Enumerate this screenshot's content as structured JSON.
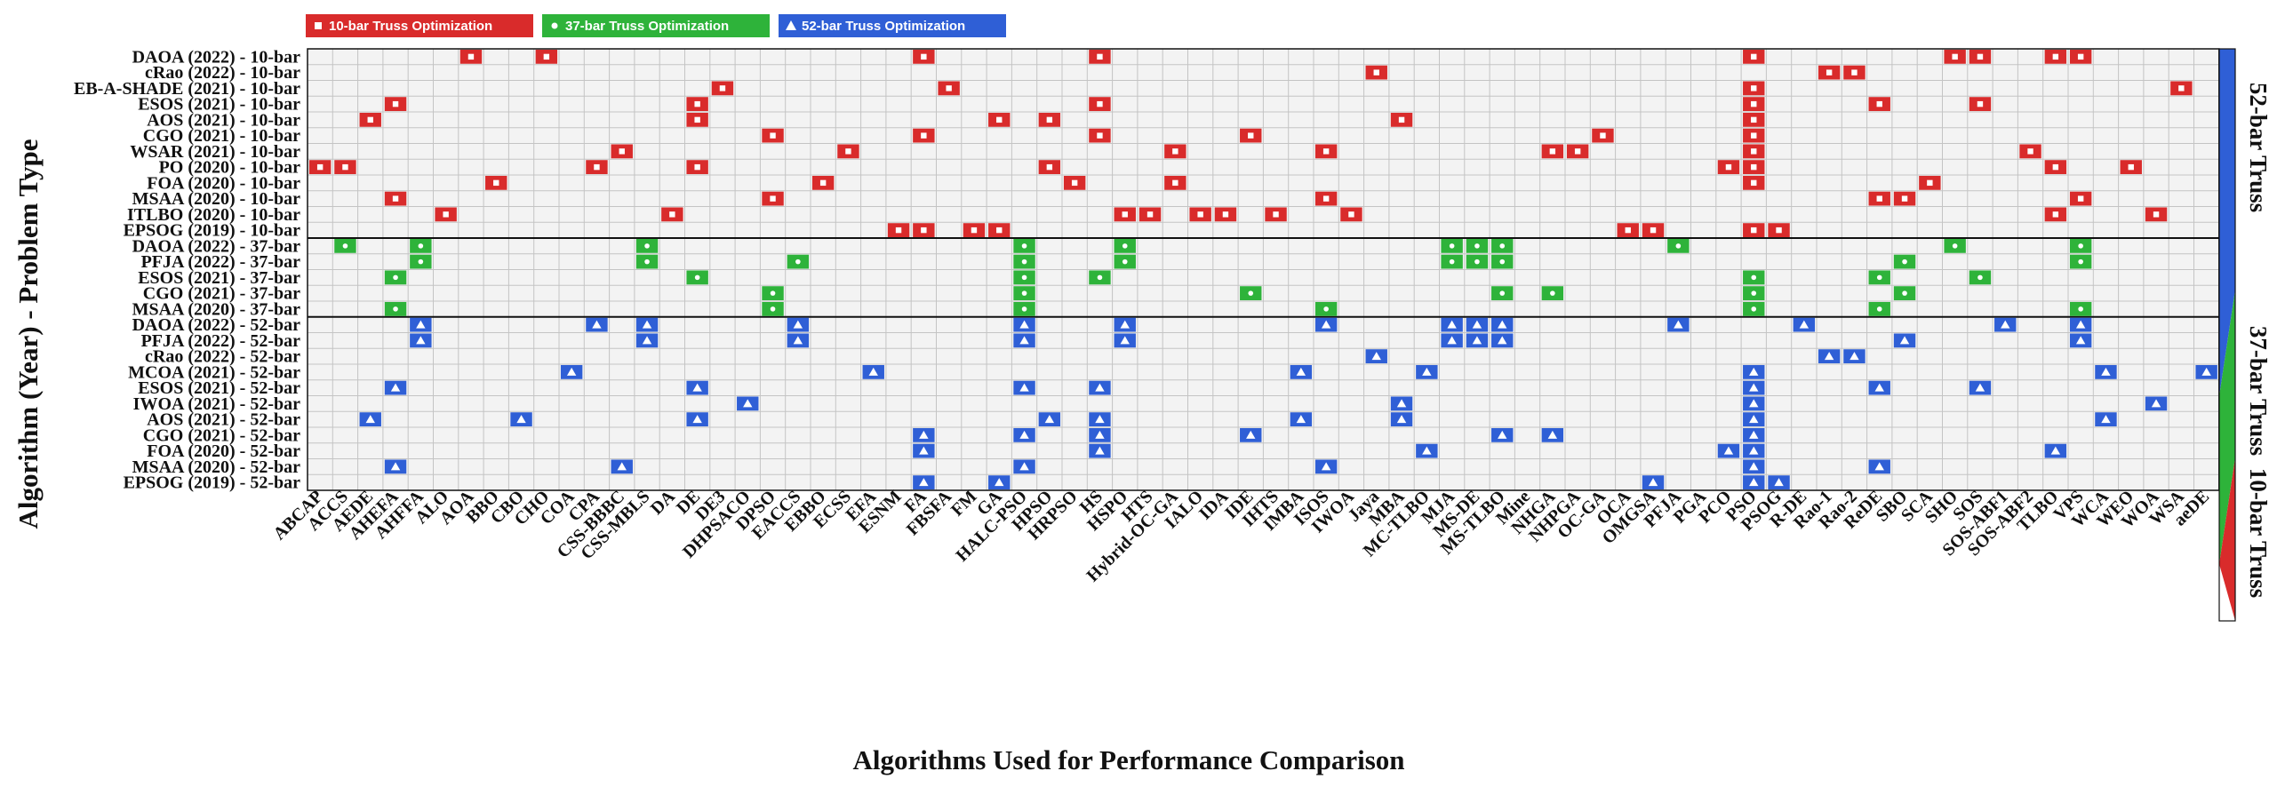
{
  "chart_data": {
    "type": "heatmap",
    "xlabel": "Algorithms Used for Performance Comparison",
    "ylabel": "Algorithm (Year) - Problem Type",
    "grid": true,
    "legend_position": "top-left",
    "colors": {
      "10bar": "#d92b2b",
      "37bar": "#2eb33a",
      "52bar": "#2f5fd6",
      "cell_bg": "#f3f3f3",
      "grid": "#c4c4c4"
    },
    "legend": [
      {
        "key": "10bar",
        "label": "10-bar Truss Optimization",
        "marker": "square"
      },
      {
        "key": "37bar",
        "label": "37-bar Truss Optimization",
        "marker": "circle"
      },
      {
        "key": "52bar",
        "label": "52-bar Truss Optimization",
        "marker": "triangle"
      }
    ],
    "colorbar_labels": [
      "52-bar Truss",
      "37-bar Truss",
      "10-bar Truss"
    ],
    "columns": [
      "ABCAP",
      "ACCS",
      "AEDE",
      "AHEFA",
      "AHFFA",
      "ALO",
      "AOA",
      "BBO",
      "CBO",
      "CHO",
      "COA",
      "CPA",
      "CSS-BBBC",
      "CSS-MBLS",
      "DA",
      "DE",
      "DE3",
      "DHPSACO",
      "DPSO",
      "EACCS",
      "EBBO",
      "ECSS",
      "EFA",
      "ESNM",
      "FA",
      "FBSFA",
      "FM",
      "GA",
      "HALC-PSO",
      "HPSO",
      "HRPSO",
      "HS",
      "HSPO",
      "HTS",
      "Hybrid-OC-GA",
      "IALO",
      "IDA",
      "IDE",
      "IHTS",
      "IMBA",
      "ISOS",
      "IWOA",
      "Jaya",
      "MBA",
      "MC-TLBO",
      "MJA",
      "MS-DE",
      "MS-TLBO",
      "Mine",
      "NHGA",
      "NHPGA",
      "OC-GA",
      "OCA",
      "OMGSA",
      "PFJA",
      "PGA",
      "PCO",
      "PSO",
      "PSOG",
      "R-DE",
      "Rao-1",
      "Rao-2",
      "ReDE",
      "SBO",
      "SCA",
      "SHO",
      "SOS",
      "SOS-ABF1",
      "SOS-ABF2",
      "TLBO",
      "VPS",
      "WCA",
      "WEO",
      "WOA",
      "WSA",
      "aeDE"
    ],
    "rows": [
      {
        "label": "DAOA (2022) - 10-bar",
        "type": "10bar",
        "x": [
          "AOA",
          "CHO",
          "FA",
          "HS",
          "PSO",
          "SHO",
          "SOS",
          "TLBO",
          "VPS"
        ]
      },
      {
        "label": "cRao (2022) - 10-bar",
        "type": "10bar",
        "x": [
          "Jaya",
          "Rao-1",
          "Rao-2"
        ]
      },
      {
        "label": "EB-A-SHADE (2021) - 10-bar",
        "type": "10bar",
        "x": [
          "DE3",
          "FBSFA",
          "PSO",
          "WSA"
        ]
      },
      {
        "label": "ESOS (2021) - 10-bar",
        "type": "10bar",
        "x": [
          "AHEFA",
          "DE",
          "HS",
          "PSO",
          "ReDE",
          "SOS"
        ]
      },
      {
        "label": "AOS (2021) - 10-bar",
        "type": "10bar",
        "x": [
          "AEDE",
          "DE",
          "GA",
          "HPSO",
          "MBA",
          "PSO"
        ]
      },
      {
        "label": "CGO (2021) - 10-bar",
        "type": "10bar",
        "x": [
          "DPSO",
          "FA",
          "HS",
          "IDE",
          "OC-GA",
          "PSO"
        ]
      },
      {
        "label": "WSAR (2021) - 10-bar",
        "type": "10bar",
        "x": [
          "CSS-BBBC",
          "ECSS",
          "Hybrid-OC-GA",
          "ISOS",
          "NHGA",
          "NHPGA",
          "PSO",
          "SOS-ABF2"
        ]
      },
      {
        "label": "PO (2020) - 10-bar",
        "type": "10bar",
        "x": [
          "ABCAP",
          "ACCS",
          "CPA",
          "DE",
          "HPSO",
          "PCO",
          "PSO",
          "TLBO",
          "WEO"
        ]
      },
      {
        "label": "FOA (2020) - 10-bar",
        "type": "10bar",
        "x": [
          "BBO",
          "EBBO",
          "HRPSO",
          "Hybrid-OC-GA",
          "PSO",
          "SCA"
        ]
      },
      {
        "label": "MSAA (2020) - 10-bar",
        "type": "10bar",
        "x": [
          "AHEFA",
          "DPSO",
          "ISOS",
          "ReDE",
          "SBO",
          "VPS"
        ]
      },
      {
        "label": "ITLBO (2020) - 10-bar",
        "type": "10bar",
        "x": [
          "ALO",
          "DA",
          "HSPO",
          "HTS",
          "IALO",
          "IDA",
          "IHTS",
          "IWOA",
          "TLBO",
          "WOA"
        ]
      },
      {
        "label": "EPSOG (2019) - 10-bar",
        "type": "10bar",
        "x": [
          "ESNM",
          "FA",
          "FM",
          "GA",
          "OCA",
          "OMGSA",
          "PSO",
          "PSOG"
        ]
      },
      {
        "label": "DAOA (2022) - 37-bar",
        "type": "37bar",
        "x": [
          "ACCS",
          "AHFFA",
          "CSS-MBLS",
          "HALC-PSO",
          "HSPO",
          "MJA",
          "MS-DE",
          "MS-TLBO",
          "PFJA",
          "SHO",
          "VPS"
        ]
      },
      {
        "label": "PFJA (2022) - 37-bar",
        "type": "37bar",
        "x": [
          "AHFFA",
          "CSS-MBLS",
          "EACCS",
          "HALC-PSO",
          "HSPO",
          "MJA",
          "MS-DE",
          "MS-TLBO",
          "SBO",
          "VPS"
        ]
      },
      {
        "label": "ESOS (2021) - 37-bar",
        "type": "37bar",
        "x": [
          "AHEFA",
          "DE",
          "HALC-PSO",
          "HS",
          "PSO",
          "ReDE",
          "SOS"
        ]
      },
      {
        "label": "CGO (2021) - 37-bar",
        "type": "37bar",
        "x": [
          "DPSO",
          "HALC-PSO",
          "IDE",
          "MS-TLBO",
          "NHGA",
          "PSO",
          "SBO"
        ]
      },
      {
        "label": "MSAA (2020) - 37-bar",
        "type": "37bar",
        "x": [
          "AHEFA",
          "DPSO",
          "HALC-PSO",
          "ISOS",
          "PSO",
          "ReDE",
          "VPS"
        ]
      },
      {
        "label": "DAOA (2022) - 52-bar",
        "type": "52bar",
        "x": [
          "AHFFA",
          "CPA",
          "CSS-MBLS",
          "EACCS",
          "HALC-PSO",
          "HSPO",
          "ISOS",
          "MJA",
          "MS-DE",
          "MS-TLBO",
          "PFJA",
          "R-DE",
          "SOS-ABF1",
          "VPS"
        ]
      },
      {
        "label": "PFJA (2022) - 52-bar",
        "type": "52bar",
        "x": [
          "AHFFA",
          "CSS-MBLS",
          "EACCS",
          "HALC-PSO",
          "HSPO",
          "MJA",
          "MS-DE",
          "MS-TLBO",
          "SBO",
          "VPS"
        ]
      },
      {
        "label": "cRao (2022) - 52-bar",
        "type": "52bar",
        "x": [
          "Jaya",
          "Rao-1",
          "Rao-2"
        ]
      },
      {
        "label": "MCOA (2021) - 52-bar",
        "type": "52bar",
        "x": [
          "COA",
          "EFA",
          "IMBA",
          "MC-TLBO",
          "PSO",
          "WCA",
          "aeDE"
        ]
      },
      {
        "label": "ESOS (2021) - 52-bar",
        "type": "52bar",
        "x": [
          "AHEFA",
          "DE",
          "HALC-PSO",
          "HS",
          "PSO",
          "ReDE",
          "SOS"
        ]
      },
      {
        "label": "IWOA (2021) - 52-bar",
        "type": "52bar",
        "x": [
          "DHPSACO",
          "MBA",
          "PSO",
          "WOA"
        ]
      },
      {
        "label": "AOS (2021) - 52-bar",
        "type": "52bar",
        "x": [
          "AEDE",
          "CBO",
          "DE",
          "HPSO",
          "HS",
          "IMBA",
          "MBA",
          "PSO",
          "WCA"
        ]
      },
      {
        "label": "CGO (2021) - 52-bar",
        "type": "52bar",
        "x": [
          "FA",
          "HALC-PSO",
          "HS",
          "IDE",
          "MS-TLBO",
          "NHGA",
          "PSO"
        ]
      },
      {
        "label": "FOA (2020) - 52-bar",
        "type": "52bar",
        "x": [
          "FA",
          "HS",
          "MC-TLBO",
          "PCO",
          "PSO",
          "TLBO"
        ]
      },
      {
        "label": "MSAA (2020) - 52-bar",
        "type": "52bar",
        "x": [
          "AHEFA",
          "CSS-BBBC",
          "HALC-PSO",
          "ISOS",
          "PSO",
          "ReDE"
        ]
      },
      {
        "label": "EPSOG (2019) - 52-bar",
        "type": "52bar",
        "x": [
          "FA",
          "GA",
          "OMGSA",
          "PSO",
          "PSOG"
        ]
      }
    ]
  }
}
